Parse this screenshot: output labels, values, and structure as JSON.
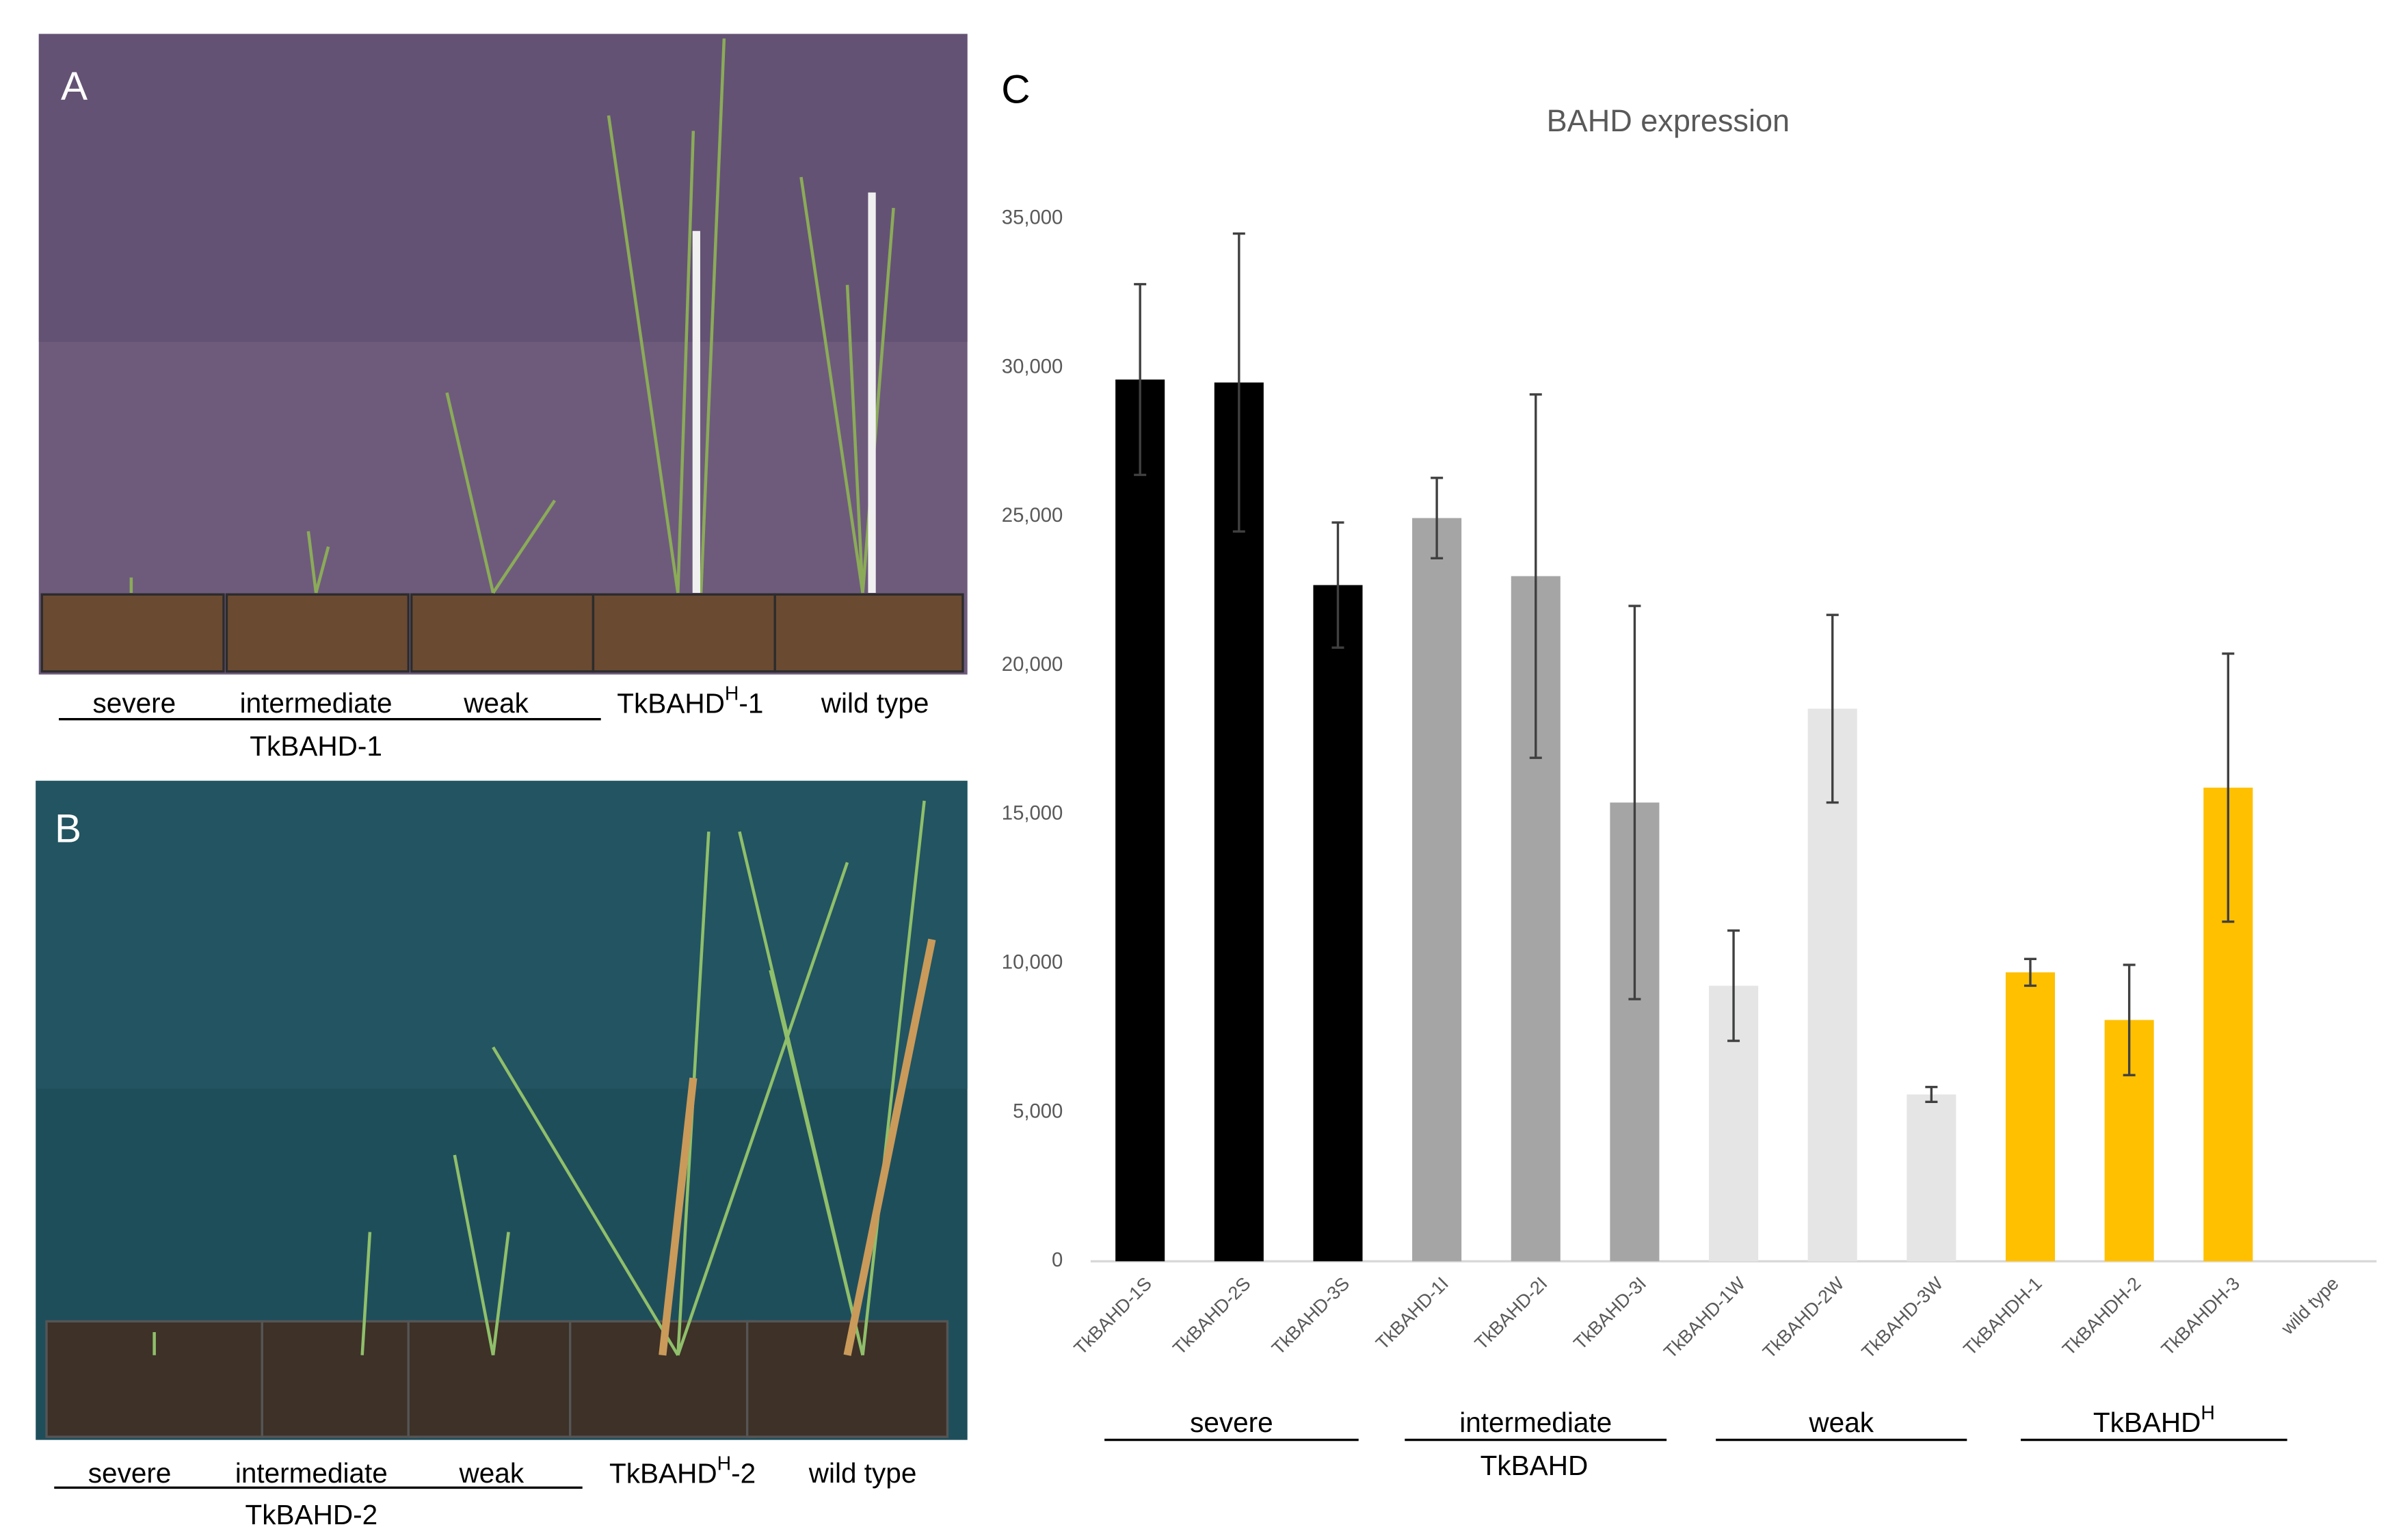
{
  "panels": [
    {
      "letter": "A",
      "labels": [
        "severe",
        "intermediate",
        "weak",
        {
          "text": "TkBAHD",
          "sup": "H",
          "suffix": "-1"
        },
        "wild type"
      ],
      "group_label": "TkBAHD-1"
    },
    {
      "letter": "B",
      "labels": [
        "severe",
        "intermediate",
        "weak",
        {
          "text": "TkBAHD",
          "sup": "H",
          "suffix": "-2"
        },
        "wild type"
      ],
      "group_label": "TkBAHD-2"
    }
  ],
  "chart_data": {
    "type": "bar",
    "letter": "C",
    "title": "BAHD expression",
    "categories": [
      "TkBAHD-1S",
      "TkBAHD-2S",
      "TkBAHD-3S",
      "TkBAHD-1I",
      "TkBAHD-2I",
      "TkBAHD-3I",
      "TkBAHD-1W",
      "TkBAHD-2W",
      "TkBAHD-3W",
      "TkBAHDH-1",
      "TkBAHDH-2",
      "TkBAHDH-3",
      "wild type"
    ],
    "values": [
      29600,
      29500,
      22700,
      24950,
      23000,
      15400,
      9250,
      18550,
      5600,
      9700,
      8100,
      15900,
      0
    ],
    "errors": [
      3200,
      5000,
      2100,
      1350,
      6100,
      6600,
      1850,
      3150,
      250,
      450,
      1850,
      4500,
      null
    ],
    "colors": [
      "#000000",
      "#000000",
      "#000000",
      "#a5a5a5",
      "#a5a5a5",
      "#a5a5a5",
      "#e6e5e5",
      "#e6e5e5",
      "#e6e5e5",
      "#ffc000",
      "#ffc000",
      "#ffc000",
      "#ffc000"
    ],
    "ylim": [
      0,
      35000
    ],
    "yticks": [
      0,
      {
        "value": 5000,
        "label": "5,000"
      },
      {
        "value": 10000,
        "label": "10,000"
      },
      {
        "value": 15000,
        "label": "15,000"
      },
      {
        "value": 20000,
        "label": "20,000"
      },
      {
        "value": 25000,
        "label": "25,000"
      },
      {
        "value": 30000,
        "label": "30,000"
      },
      {
        "value": 35000,
        "label": "35,000"
      }
    ],
    "grid": false,
    "groups": [
      "severe",
      "intermediate",
      "weak",
      {
        "text": "TkBAHD",
        "sup": "H"
      }
    ],
    "supergroup": "TkBAHD"
  }
}
